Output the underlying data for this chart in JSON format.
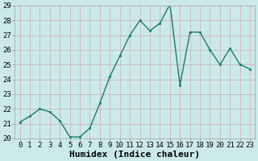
{
  "x": [
    0,
    1,
    2,
    3,
    4,
    5,
    6,
    7,
    8,
    9,
    10,
    11,
    12,
    13,
    14,
    15,
    16,
    17,
    18,
    19,
    20,
    21,
    22,
    23
  ],
  "y": [
    21.1,
    21.5,
    22.0,
    21.8,
    21.2,
    20.1,
    20.1,
    20.7,
    22.4,
    24.2,
    25.6,
    27.0,
    28.0,
    27.3,
    27.8,
    29.1,
    23.6,
    27.2,
    27.2,
    26.0,
    25.0,
    26.1,
    25.0,
    24.7
  ],
  "line_color": "#1a7a6e",
  "marker_color": "#1a7a6e",
  "bg_color": "#cce9e9",
  "grid_major_color": "#c0d8d8",
  "grid_minor_color": "#d8ecec",
  "xlabel": "Humidex (Indice chaleur)",
  "ylim": [
    20,
    29
  ],
  "xlim": [
    -0.5,
    23.5
  ],
  "yticks": [
    20,
    21,
    22,
    23,
    24,
    25,
    26,
    27,
    28,
    29
  ],
  "xticks": [
    0,
    1,
    2,
    3,
    4,
    5,
    6,
    7,
    8,
    9,
    10,
    11,
    12,
    13,
    14,
    15,
    16,
    17,
    18,
    19,
    20,
    21,
    22,
    23
  ],
  "tick_label_fontsize": 6.5,
  "xlabel_fontsize": 8,
  "spine_color": "#aaaaaa",
  "line_width": 1.0,
  "marker_size": 2.0
}
